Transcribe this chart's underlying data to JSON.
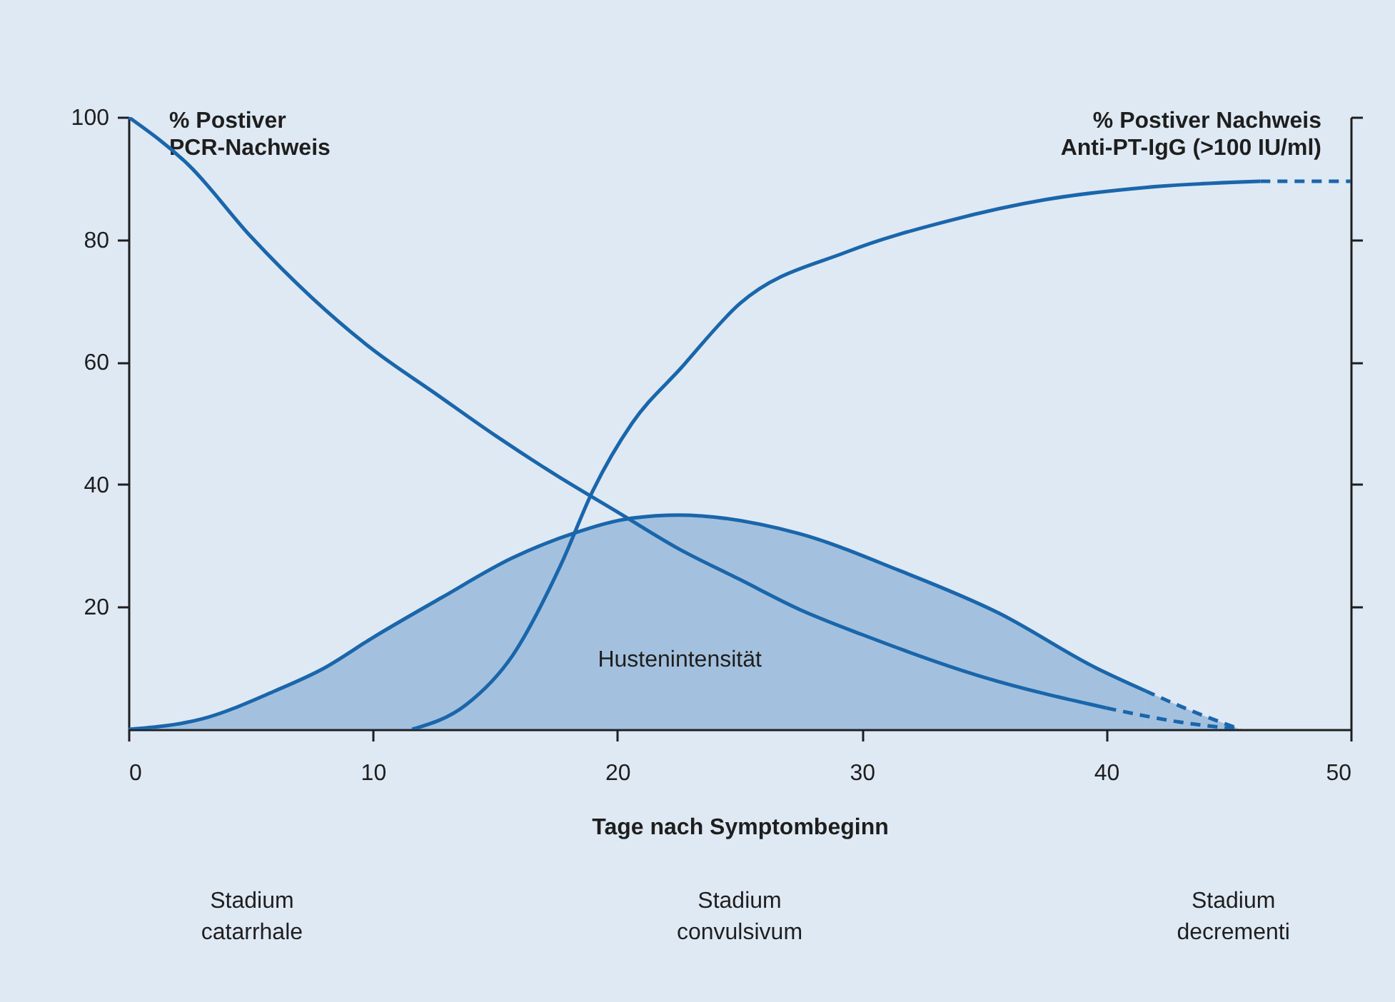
{
  "chart_data": {
    "type": "line",
    "xlabel": "Tage nach Symptombeginn",
    "ylabel": "% Postiver\nPCR-Nachweis",
    "y2label": "% Postiver Nachweis\nAnti-PT-IgG (>100 IU/ml)",
    "xlim": [
      0,
      50
    ],
    "xticks": [
      0,
      10,
      20,
      30,
      40,
      50
    ],
    "ylim": [
      0,
      100
    ],
    "yticks": [
      20,
      40,
      60,
      80,
      100
    ],
    "grid": false,
    "legend": false,
    "series": [
      {
        "type": "area",
        "color": "#1a66ab",
        "x": [
          0,
          3,
          6,
          8,
          10,
          12.8,
          15.7,
          18.2,
          20.6,
          22.5,
          27.4,
          31.5,
          35.6,
          39.6,
          41.6
        ],
        "values": [
          0,
          1.7,
          6.3,
          10,
          15,
          21.5,
          28,
          32,
          34.5,
          35,
          32,
          26,
          19,
          10,
          6.3
        ]
      },
      {
        "type": "area",
        "color": "#1a66ab",
        "line_style": "dashed",
        "x": [
          41.6,
          43.5,
          45.5
        ],
        "values": [
          6.3,
          3,
          0
        ]
      },
      {
        "color": "#1a66ab",
        "x": [
          0,
          2.5,
          5,
          7.5,
          10,
          12.5,
          15,
          17.5,
          20,
          22.5,
          25,
          27.5,
          30,
          35,
          40
        ],
        "values": [
          100,
          92,
          80.5,
          70.5,
          62,
          55,
          48,
          41.5,
          35.5,
          29.5,
          24.5,
          19.5,
          15.5,
          8.5,
          3.5
        ]
      },
      {
        "color": "#1a66ab",
        "line_style": "dashed",
        "x": [
          40,
          43,
          45.5
        ],
        "values": [
          3.5,
          1.2,
          0
        ]
      },
      {
        "color": "#1a66ab",
        "x": [
          11.6,
          13.8,
          15.7,
          17.7,
          19,
          20.6,
          22.6,
          25,
          29.4,
          33.5,
          37.5,
          41.6,
          46.3
        ],
        "values": [
          0,
          4,
          12,
          27,
          39,
          50,
          59,
          69.5,
          78,
          83,
          86.5,
          88.5,
          89.5
        ]
      },
      {
        "color": "#1a66ab",
        "line_style": "dashed",
        "x": [
          46.3,
          50
        ],
        "values": [
          89.5,
          89.5
        ]
      }
    ],
    "annotations": [
      "Hustenintensität",
      "Stadium\ncatarrhale",
      "Stadium\nconvulsivum",
      "Stadium\ndecrementi"
    ]
  }
}
